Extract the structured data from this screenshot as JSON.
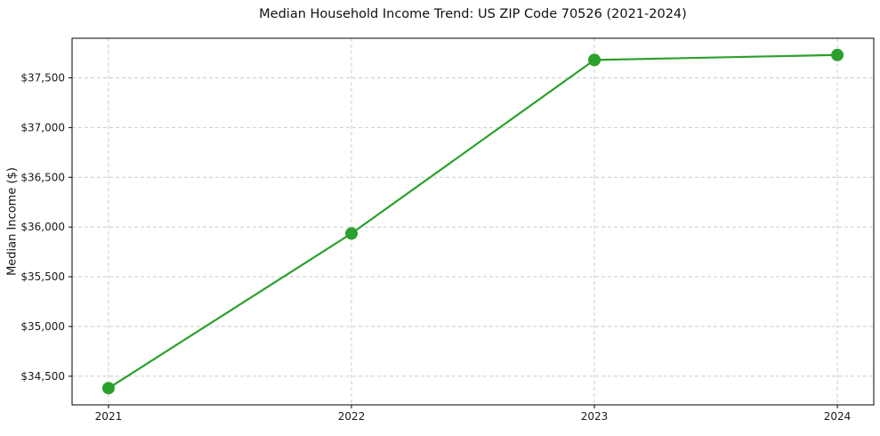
{
  "chart": {
    "title": "Median Household Income Trend: US ZIP Code 70526 (2021-2024)",
    "ylabel": "Median Income ($)"
  },
  "chart_data": {
    "type": "line",
    "title": "Median Household Income Trend: US ZIP Code 70526 (2021-2024)",
    "xlabel": "",
    "ylabel": "Median Income ($)",
    "categories": [
      "2021",
      "2022",
      "2023",
      "2024"
    ],
    "series": [
      {
        "name": "Median Household Income",
        "values": [
          34380,
          35935,
          37680,
          37730
        ]
      }
    ],
    "ylim": [
      34212,
      37898
    ],
    "yticks": [
      34500,
      35000,
      35500,
      36000,
      36500,
      37000,
      37500
    ],
    "ytick_labels": [
      "$34,500",
      "$35,000",
      "$35,500",
      "$36,000",
      "$36,500",
      "$37,000",
      "$37,500"
    ],
    "xtick_labels": [
      "2021",
      "2022",
      "2023",
      "2024"
    ],
    "grid": true,
    "grid_style": "dashed",
    "legend_position": "none",
    "line_color": "#2ca02c",
    "marker": "circle",
    "marker_radius": 7,
    "line_width": 2.2,
    "grid_color": "#cccccc",
    "axis_color": "#000000",
    "text_color": "#1a1a1a",
    "background": "#ffffff"
  }
}
